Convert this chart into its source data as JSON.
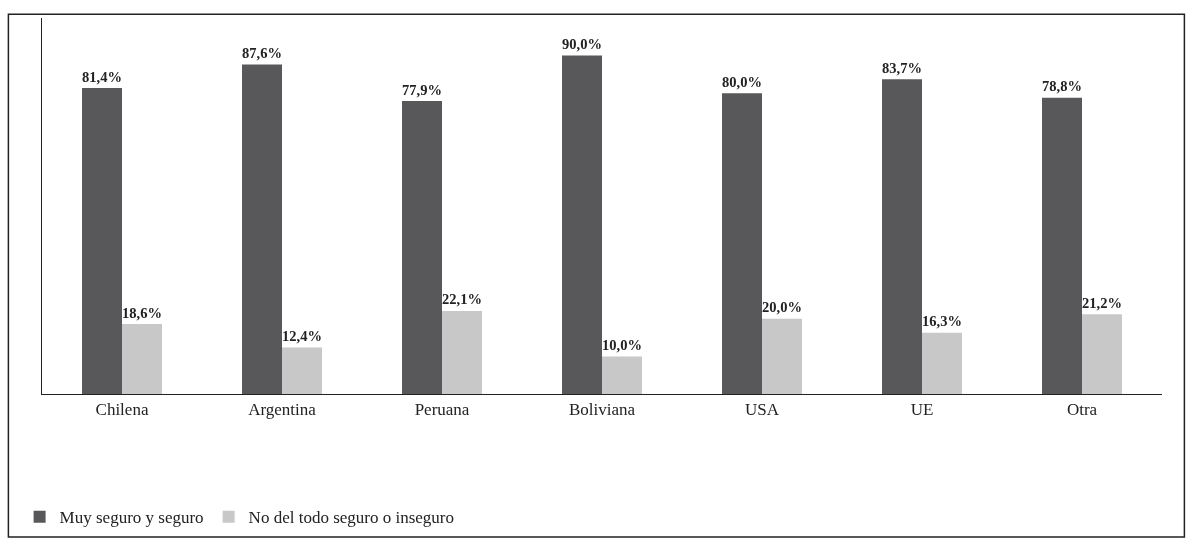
{
  "chart_data": {
    "type": "bar",
    "categories": [
      "Chilena",
      "Argentina",
      "Peruana",
      "Boliviana",
      "USA",
      "UE",
      "Otra"
    ],
    "series": [
      {
        "name": "Muy seguro y seguro",
        "color": "#58585a",
        "values": [
          81.4,
          87.6,
          77.9,
          90.0,
          80.0,
          83.7,
          78.8
        ],
        "value_labels": [
          "81,4%",
          "87,6%",
          "77,9%",
          "90,0%",
          "80,0%",
          "83,7%",
          "78,8%"
        ]
      },
      {
        "name": "No del todo seguro o inseguro",
        "color": "#c8c8c8",
        "values": [
          18.6,
          12.4,
          22.1,
          10.0,
          20.0,
          16.3,
          21.2
        ],
        "value_labels": [
          "18,6%",
          "12,4%",
          "22,1%",
          "10,0%",
          "20,0%",
          "16,3%",
          "21,2%"
        ]
      }
    ],
    "ylim": [
      0,
      100
    ],
    "tick_labels": "x",
    "legend": "bottom left"
  }
}
